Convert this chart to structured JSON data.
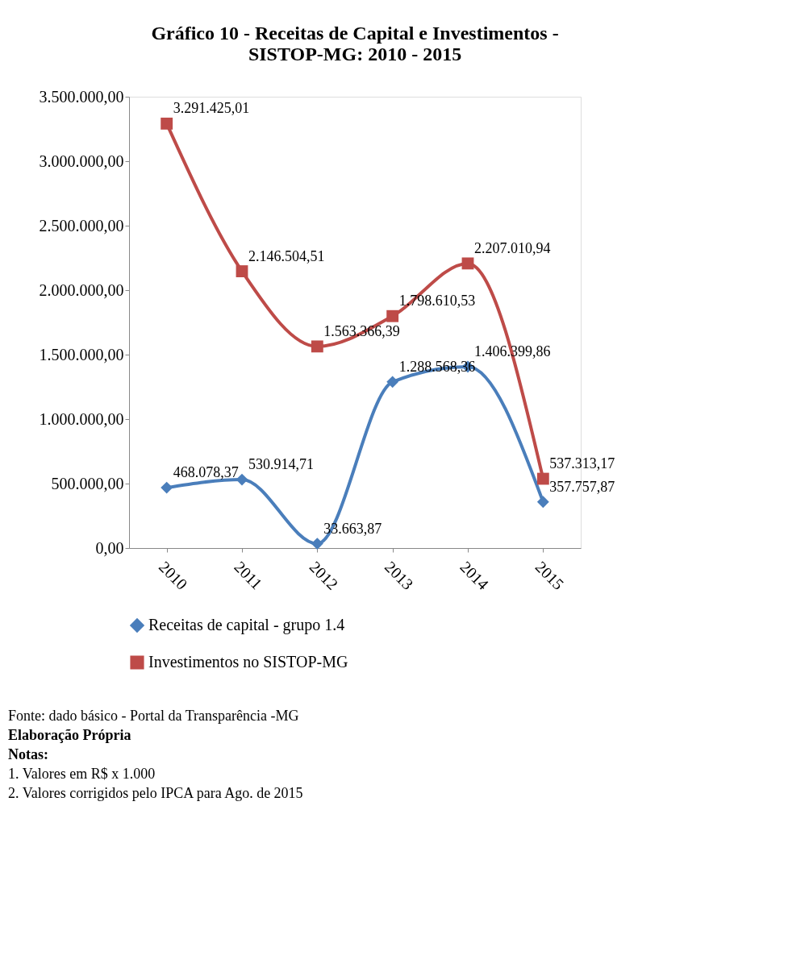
{
  "chart_data": {
    "type": "line",
    "title": [
      "Gráfico 10 - Receitas de Capital e Investimentos -",
      "SISTOP-MG: 2010 - 2015"
    ],
    "categories": [
      "2010",
      "2011",
      "2012",
      "2013",
      "2014",
      "2015"
    ],
    "series": [
      {
        "name": "Receitas de capital - grupo 1.4",
        "color": "#4a7ebb",
        "marker": "diamond",
        "values": [
          468078.37,
          530914.71,
          33663.87,
          1288568.36,
          1406399.86,
          357757.87
        ],
        "value_labels": [
          "468.078,37",
          "530.914,71",
          "33.663,87",
          "1.288.568,36",
          "1.406.399,86",
          "357.757,87"
        ]
      },
      {
        "name": "Investimentos no SISTOP-MG",
        "color": "#be4b48",
        "marker": "square",
        "values": [
          3291425.01,
          2146504.51,
          1563366.39,
          1798610.53,
          2207010.94,
          537313.17
        ],
        "value_labels": [
          "3.291.425,01",
          "2.146.504,51",
          "1.563.366,39",
          "1.798.610,53",
          "2.207.010,94",
          "537.313,17"
        ]
      }
    ],
    "ylim": [
      0,
      3500000
    ],
    "yticks": [
      {
        "value": 0,
        "label": "0,00"
      },
      {
        "value": 500000,
        "label": "500.000,00"
      },
      {
        "value": 1000000,
        "label": "1.000.000,00"
      },
      {
        "value": 1500000,
        "label": "1.500.000,00"
      },
      {
        "value": 2000000,
        "label": "2.000.000,00"
      },
      {
        "value": 2500000,
        "label": "2.500.000,00"
      },
      {
        "value": 3000000,
        "label": "3.000.000,00"
      },
      {
        "value": 3500000,
        "label": "3.500.000,00"
      }
    ],
    "grid": false,
    "legend": "bottom",
    "line_style": "solid",
    "annotations": [
      "Fonte: dado básico - Portal da Transparência -MG",
      "Elaboração Própria",
      "Notas:",
      "1. Valores em R$ x 1.000",
      "2. Valores corrigidos pelo IPCA para Ago. de 2015"
    ]
  }
}
